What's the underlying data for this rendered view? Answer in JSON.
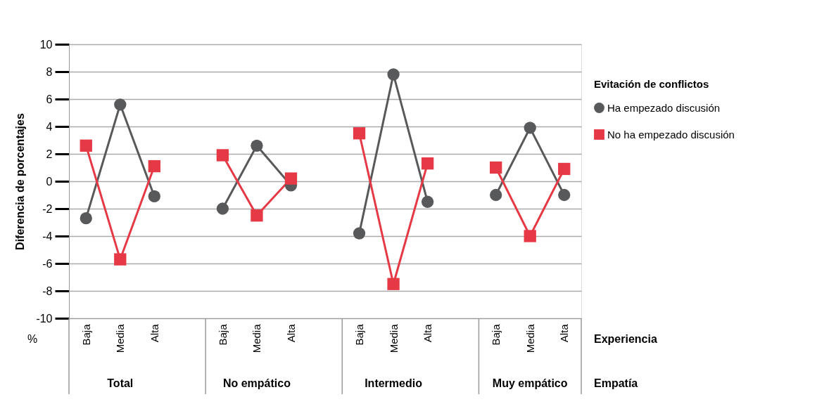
{
  "chart_data": {
    "type": "line",
    "ylabel": "Diferencia de porcentajes",
    "xlabel": "Experiencia",
    "legend_title": "Evitación de conflictos",
    "categories": [
      "Baja",
      "Media",
      "Alta",
      null,
      "Baja",
      "Media",
      "Alta",
      null,
      "Baja",
      "Media",
      "Alta",
      null,
      "Baja",
      "Media",
      "Alta"
    ],
    "series": [
      {
        "name": "Ha empezado discusión",
        "color": "#58595b",
        "marker": "circle",
        "values": [
          -2.7,
          5.6,
          -1.1,
          null,
          -2.0,
          2.6,
          -0.3,
          null,
          -3.8,
          7.8,
          -1.5,
          null,
          -1.0,
          3.9,
          -1.0
        ]
      },
      {
        "name": "No ha empezado discusión",
        "color": "#e63946",
        "marker": "square",
        "values": [
          2.6,
          -5.7,
          1.1,
          null,
          1.9,
          -2.5,
          0.2,
          null,
          3.5,
          -7.5,
          1.3,
          null,
          1.0,
          -4.0,
          0.9
        ]
      }
    ],
    "annotations": [
      "Total",
      "No empático",
      "Intermedio",
      "Muy empático",
      "Empatía",
      "%"
    ],
    "ylim": [
      -10,
      10
    ],
    "yticks": [
      -10,
      -8,
      -6,
      -4,
      -2,
      0,
      2,
      4,
      6,
      8,
      10
    ],
    "grid": "y",
    "legend": "right",
    "line_style": "solid"
  }
}
